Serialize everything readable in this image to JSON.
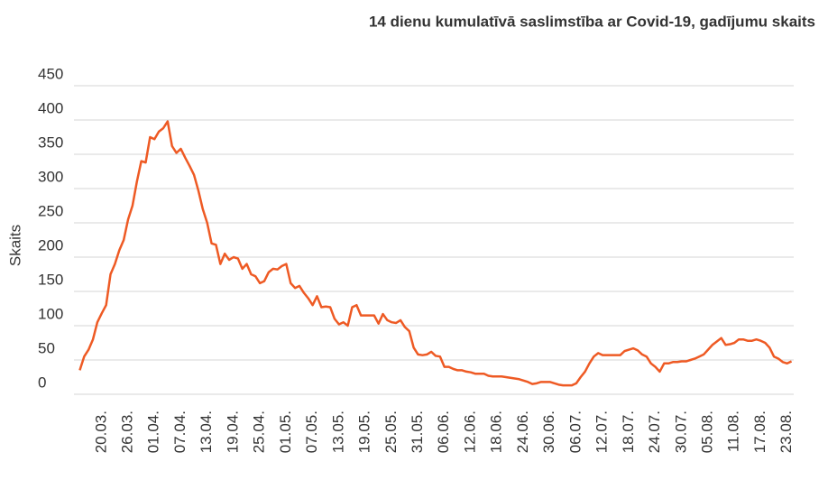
{
  "chart_data": {
    "type": "line",
    "title": "14 dienu kumulatīvā saslimstība ar Covid-19, gadījumu skaits",
    "y_label": "Skaits",
    "categories": [
      null,
      null,
      null,
      null,
      null,
      "20.03.",
      null,
      null,
      null,
      null,
      null,
      "26.03.",
      null,
      null,
      null,
      null,
      null,
      "01.04.",
      null,
      null,
      null,
      null,
      null,
      "07.04.",
      null,
      null,
      null,
      null,
      null,
      "13.04.",
      null,
      null,
      null,
      null,
      null,
      "19.04.",
      null,
      null,
      null,
      null,
      null,
      "25.04.",
      null,
      null,
      null,
      null,
      null,
      "01.05.",
      null,
      null,
      null,
      null,
      null,
      "07.05.",
      null,
      null,
      null,
      null,
      null,
      "13.05.",
      null,
      null,
      null,
      null,
      null,
      "19.05.",
      null,
      null,
      null,
      null,
      null,
      "25.05.",
      null,
      null,
      null,
      null,
      null,
      "31.05.",
      null,
      null,
      null,
      null,
      null,
      "06.06.",
      null,
      null,
      null,
      null,
      null,
      "12.06.",
      null,
      null,
      null,
      null,
      null,
      "18.06.",
      null,
      null,
      null,
      null,
      null,
      "24.06.",
      null,
      null,
      null,
      null,
      null,
      "30.06.",
      null,
      null,
      null,
      null,
      null,
      "06.07.",
      null,
      null,
      null,
      null,
      null,
      "12.07.",
      null,
      null,
      null,
      null,
      null,
      "18.07.",
      null,
      null,
      null,
      null,
      null,
      "24.07.",
      null,
      null,
      null,
      null,
      null,
      "30.07.",
      null,
      null,
      null,
      null,
      null,
      "05.08.",
      null,
      null,
      null,
      null,
      null,
      "11.08.",
      null,
      null,
      null,
      null,
      null,
      "17.08.",
      null,
      null,
      null,
      null,
      null,
      "23.08.",
      null
    ],
    "series": [
      {
        "name": "Skaits",
        "color": "#ee5a24",
        "values": [
          35,
          55,
          65,
          80,
          105,
          118,
          130,
          175,
          190,
          210,
          225,
          255,
          275,
          310,
          340,
          338,
          375,
          372,
          383,
          388,
          398,
          362,
          352,
          358,
          345,
          333,
          320,
          297,
          270,
          250,
          220,
          218,
          190,
          205,
          196,
          200,
          198,
          183,
          190,
          175,
          172,
          162,
          165,
          178,
          183,
          182,
          187,
          190,
          162,
          155,
          158,
          148,
          140,
          130,
          143,
          127,
          128,
          127,
          110,
          102,
          105,
          100,
          127,
          130,
          115,
          115,
          115,
          115,
          103,
          117,
          108,
          105,
          104,
          108,
          98,
          92,
          68,
          58,
          57,
          58,
          62,
          56,
          55,
          40,
          40,
          37,
          35,
          35,
          33,
          32,
          30,
          30,
          30,
          27,
          26,
          26,
          26,
          25,
          24,
          23,
          22,
          20,
          18,
          15,
          16,
          18,
          18,
          18,
          16,
          14,
          13,
          13,
          13,
          16,
          25,
          33,
          45,
          55,
          60,
          57,
          57,
          57,
          57,
          57,
          63,
          65,
          67,
          64,
          58,
          55,
          45,
          40,
          33,
          45,
          45,
          47,
          47,
          48,
          48,
          50,
          52,
          55,
          58,
          65,
          72,
          77,
          82,
          72,
          73,
          75,
          80,
          80,
          78,
          78,
          80,
          78,
          75,
          68,
          55,
          52,
          47,
          45,
          48
        ]
      }
    ],
    "ylim": [
      0,
      450
    ],
    "yticks": [
      0,
      50,
      100,
      150,
      200,
      250,
      300,
      350,
      400,
      450
    ],
    "grid": true
  }
}
